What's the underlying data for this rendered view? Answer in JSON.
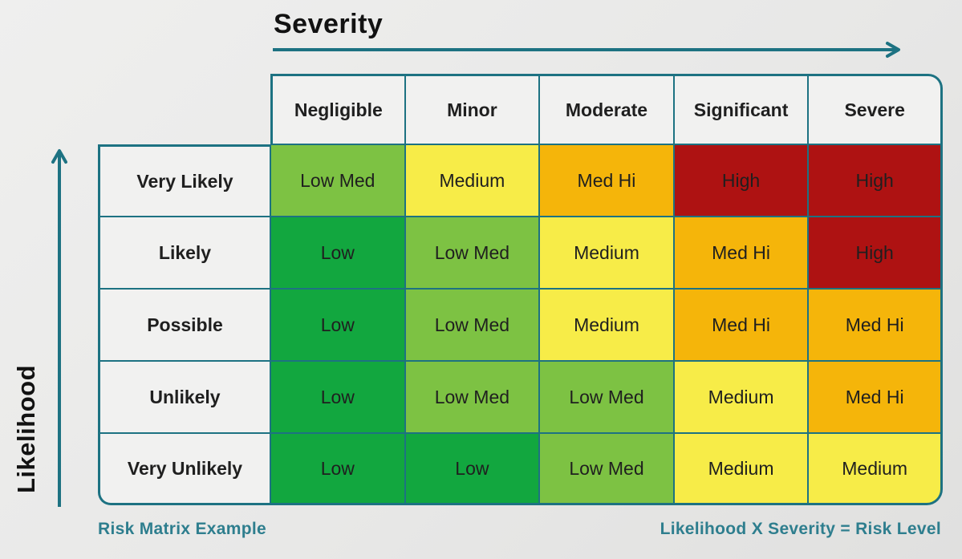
{
  "axes": {
    "x_title": "Severity",
    "y_title": "Likelihood"
  },
  "captions": {
    "left": "Risk Matrix Example",
    "right": "Likelihood X Severity = Risk Level"
  },
  "chart_data": {
    "type": "heatmap",
    "title": "Risk Matrix Example",
    "xlabel": "Severity",
    "ylabel": "Likelihood",
    "columns": [
      "Negligible",
      "Minor",
      "Moderate",
      "Significant",
      "Severe"
    ],
    "rows": [
      "Very Likely",
      "Likely",
      "Possible",
      "Unlikely",
      "Very Unlikely"
    ],
    "values": [
      [
        "Low Med",
        "Medium",
        "Med Hi",
        "High",
        "High"
      ],
      [
        "Low",
        "Low Med",
        "Medium",
        "Med Hi",
        "High"
      ],
      [
        "Low",
        "Low Med",
        "Medium",
        "Med Hi",
        "Med Hi"
      ],
      [
        "Low",
        "Low Med",
        "Low Med",
        "Medium",
        "Med Hi"
      ],
      [
        "Low",
        "Low",
        "Low Med",
        "Medium",
        "Medium"
      ]
    ],
    "annotation": "Likelihood X Severity = Risk Level",
    "level_colors": {
      "Low": "#12A73F",
      "Low Med": "#7DC243",
      "Medium": "#F7EC48",
      "Med Hi": "#F5B50A",
      "High": "#AE1212"
    },
    "legend_position": "none",
    "grid": true
  },
  "colors": {
    "teal": "#1D7282",
    "caption_text": "#2E7E8E",
    "cell_text": "#1F1F1F",
    "header_bg": "#F1F1F0"
  }
}
